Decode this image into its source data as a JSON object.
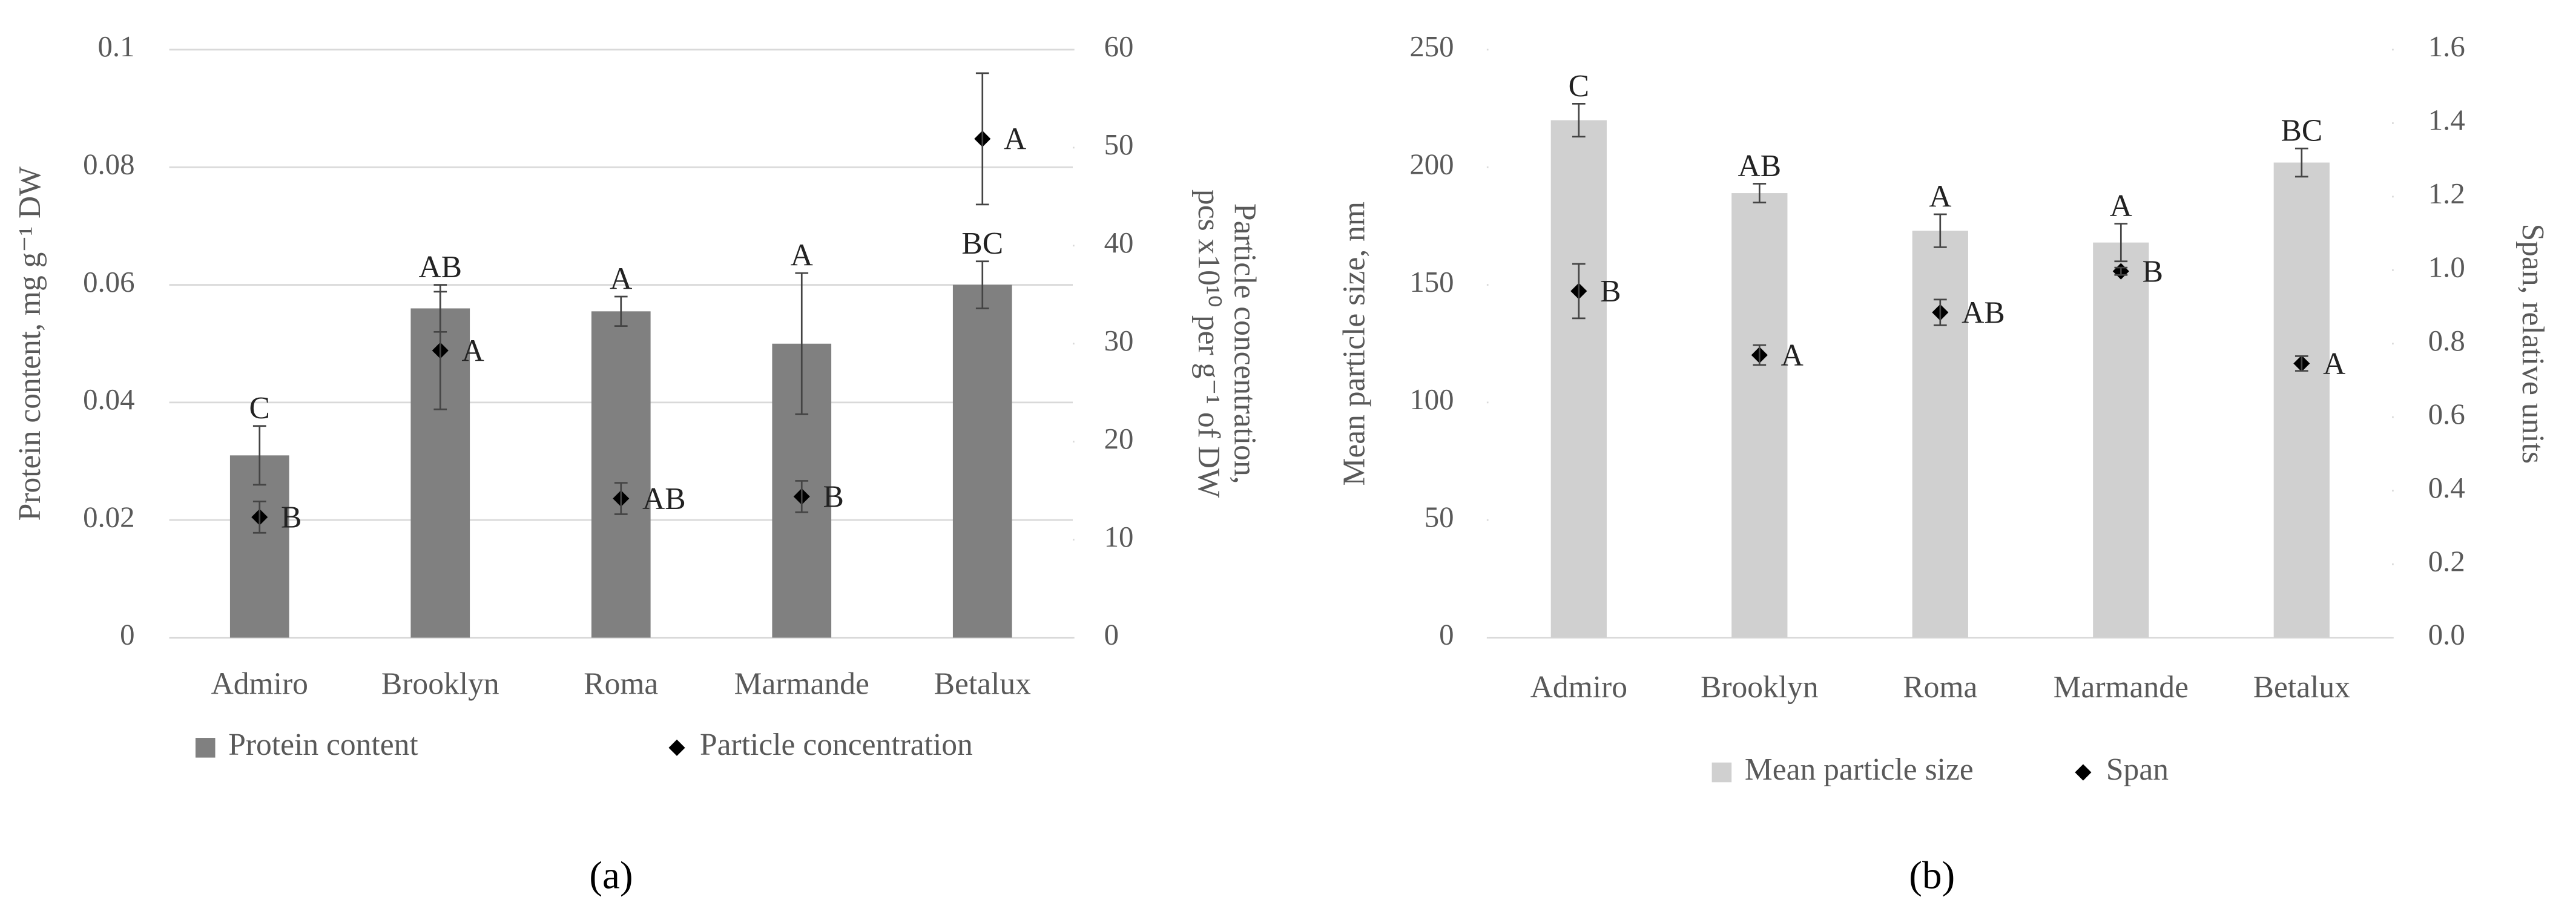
{
  "chart_data": [
    {
      "type": "bar",
      "panel_label": "(a)",
      "categories": [
        "Admiro",
        "Brooklyn",
        "Roma",
        "Marmande",
        "Betalux"
      ],
      "ylabel": "Protein content, mg g⁻¹ DW",
      "y2label": [
        "Particle concentration,",
        "pcs x10¹⁰ per g⁻¹ of DW"
      ],
      "ylim": [
        0,
        0.1
      ],
      "yticks": [
        0,
        0.02,
        0.04,
        0.06,
        0.08,
        0.1
      ],
      "y2lim": [
        0,
        60
      ],
      "y2ticks": [
        0,
        10,
        20,
        30,
        40,
        50,
        60
      ],
      "grid": true,
      "series": [
        {
          "name": "Protein content",
          "type": "bar",
          "color": "#808080",
          "values": [
            0.031,
            0.056,
            0.0555,
            0.05,
            0.06
          ],
          "errors": [
            0.005,
            0.004,
            0.0025,
            0.012,
            0.004
          ],
          "annotations": [
            "C",
            "AB",
            "A",
            "A",
            "BC"
          ]
        },
        {
          "name": "Particle concentration",
          "type": "scatter",
          "axis": "y2",
          "color": "#000000",
          "values": [
            12.3,
            29.3,
            14.2,
            14.4,
            50.9
          ],
          "errors": [
            1.6,
            6.0,
            1.6,
            1.6,
            6.7
          ],
          "annotations": [
            "B",
            "A",
            "AB",
            "B",
            "A"
          ]
        }
      ]
    },
    {
      "type": "bar",
      "panel_label": "(b)",
      "categories": [
        "Admiro",
        "Brooklyn",
        "Roma",
        "Marmande",
        "Betalux"
      ],
      "ylabel": "Mean particle size, nm",
      "y2label": [
        "Span, relative units"
      ],
      "ylim": [
        0,
        250
      ],
      "yticks": [
        0,
        50,
        100,
        150,
        200,
        250
      ],
      "y2lim": [
        0,
        1.6
      ],
      "y2ticks": [
        {
          "value": 0,
          "label": "0.0"
        },
        0.2,
        0.4,
        0.6,
        0.8,
        {
          "value": 1,
          "label": "1.0"
        },
        1.2,
        1.4,
        1.6
      ],
      "grid": false,
      "series": [
        {
          "name": "Mean particle size",
          "type": "bar",
          "color": "#d0d0d0",
          "values": [
            220,
            189,
            173,
            168,
            202
          ],
          "errors": [
            7,
            4,
            7,
            8,
            6
          ],
          "annotations": [
            "C",
            "AB",
            "A",
            "A",
            "BC"
          ]
        },
        {
          "name": "Span",
          "type": "scatter",
          "axis": "y2",
          "color": "#000000",
          "values": [
            0.943,
            0.769,
            0.885,
            0.997,
            0.746
          ],
          "errors": [
            0.074,
            0.027,
            0.035,
            0.01,
            0.02
          ],
          "annotations": [
            "B",
            "A",
            "AB",
            "B",
            "A"
          ]
        }
      ]
    }
  ]
}
